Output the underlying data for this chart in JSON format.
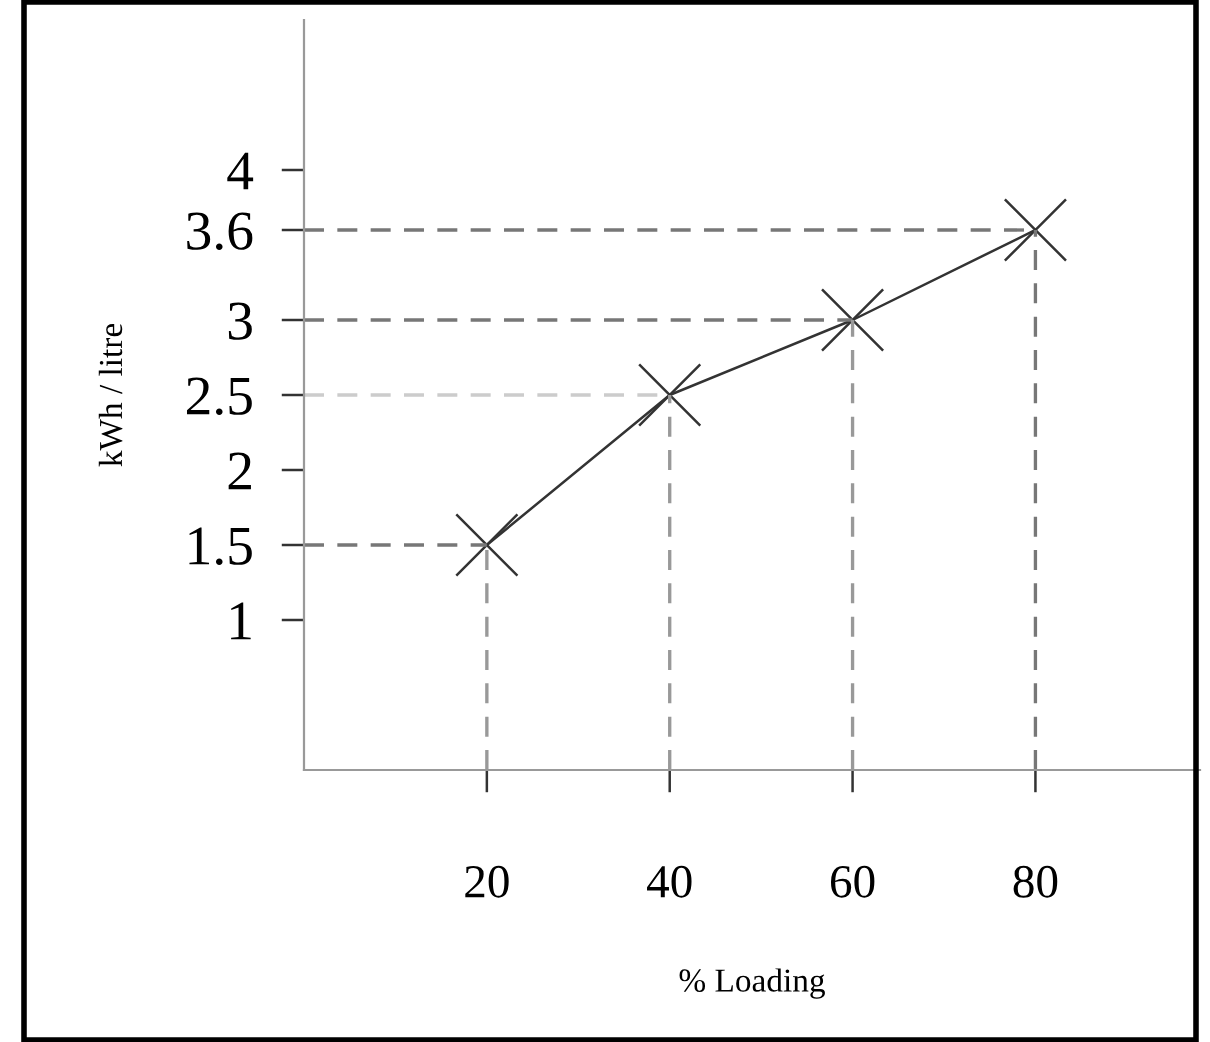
{
  "chart_data": {
    "type": "line",
    "xlabel": "% Loading",
    "ylabel": "kWh / litre",
    "x": [
      20,
      40,
      60,
      80
    ],
    "series": [
      {
        "color": "#333333",
        "values": [
          1.5,
          2.5,
          3.0,
          3.6
        ]
      }
    ],
    "marker": "cross",
    "line_style": "solid",
    "grid": false,
    "xlim": [
      0,
      98
    ],
    "ylim": [
      0,
      5
    ],
    "xticks": [
      20,
      40,
      60,
      80
    ],
    "yticks": [
      1,
      {
        "value": 1.5,
        "label": "1.5"
      },
      2,
      {
        "value": 2.5,
        "label": "2.5"
      },
      3,
      {
        "value": 3.6,
        "label": "3.6"
      },
      4
    ],
    "ref_lines": [
      {
        "axis": "y",
        "value": 1.5,
        "color": "#777777",
        "line_style": "dashed"
      },
      {
        "axis": "y",
        "value": 2.5,
        "color": "#cccccc",
        "line_style": "dashed"
      },
      {
        "axis": "y",
        "value": 3.0,
        "color": "#777777",
        "line_style": "dashed"
      },
      {
        "axis": "y",
        "value": 3.6,
        "color": "#777777",
        "line_style": "dashed"
      },
      {
        "axis": "x",
        "value": 20,
        "color": "#999999",
        "line_style": "dashed"
      },
      {
        "axis": "x",
        "value": 40,
        "color": "#999999",
        "line_style": "dashed"
      },
      {
        "axis": "x",
        "value": 60,
        "color": "#999999",
        "line_style": "dashed"
      },
      {
        "axis": "x",
        "value": 80,
        "color": "#777777",
        "line_style": "dashed"
      }
    ]
  }
}
